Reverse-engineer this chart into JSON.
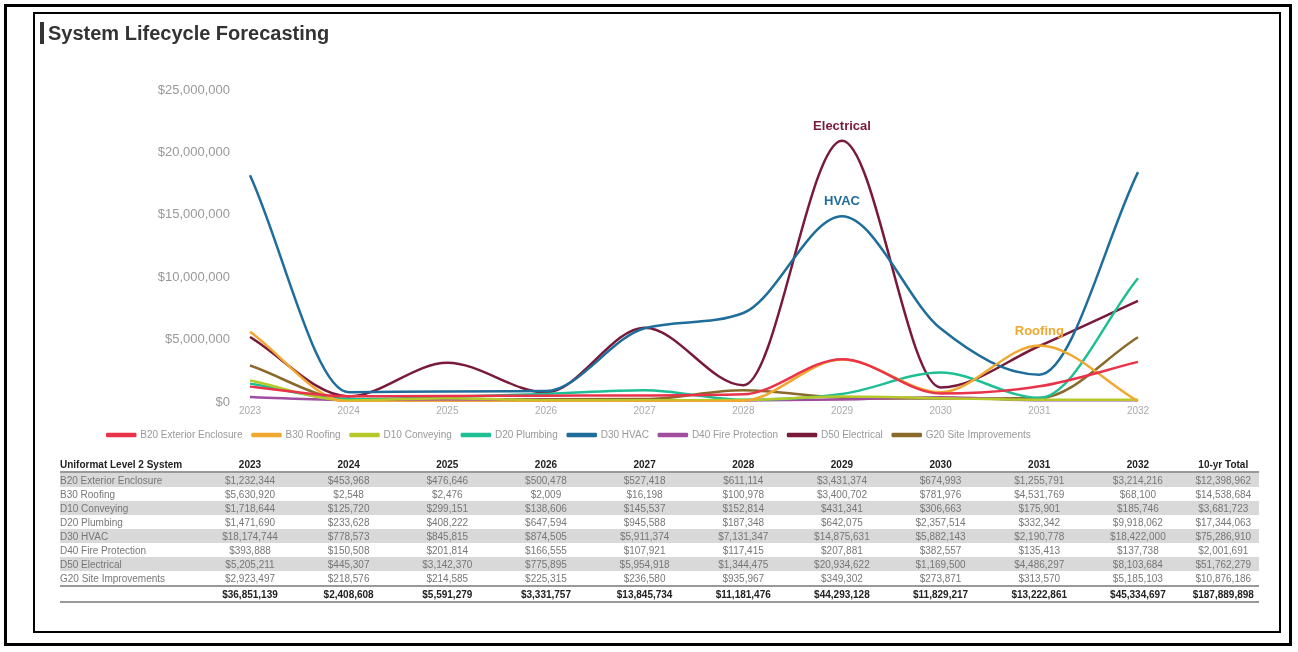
{
  "chart_data": {
    "type": "line",
    "title": "System Lifecycle Forecasting",
    "categories": [
      "2023",
      "2024",
      "2025",
      "2026",
      "2027",
      "2028",
      "2029",
      "2030",
      "2031",
      "2032"
    ],
    "ylim": [
      0,
      25000000
    ],
    "yticks": [
      {
        "value": 0,
        "label": "$0"
      },
      {
        "value": 5000000,
        "label": "$5,000,000"
      },
      {
        "value": 10000000,
        "label": "$10,000,000"
      },
      {
        "value": 15000000,
        "label": "$15,000,000"
      },
      {
        "value": 20000000,
        "label": "$20,000,000"
      },
      {
        "value": 25000000,
        "label": "$25,000,000"
      }
    ],
    "grid": false,
    "legend": "bottom",
    "marker": "none",
    "line_style": "solid",
    "series": [
      {
        "name": "B20 Exterior Enclosure",
        "color": "#e8334a",
        "values": [
          1232344,
          453968,
          476646,
          500478,
          527418,
          611114,
          3431374,
          674993,
          1255791,
          3214216
        ],
        "value_labels": [
          "$1,232,344",
          "$453,968",
          "$476,646",
          "$500,478",
          "$527,418",
          "$611,114",
          "$3,431,374",
          "$674,993",
          "$1,255,791",
          "$3,214,216"
        ]
      },
      {
        "name": "B30 Roofing",
        "color": "#f0a830",
        "values": [
          5630920,
          2548,
          2476,
          2009,
          16198,
          100978,
          3400702,
          781976,
          4531769,
          68100
        ],
        "value_labels": [
          "$5,630,920",
          "$2,548",
          "$2,476",
          "$2,009",
          "$16,198",
          "$100,978",
          "$3,400,702",
          "$781,976",
          "$4,531,769",
          "$68,100"
        ]
      },
      {
        "name": "D10 Conveying",
        "color": "#b5c92a",
        "values": [
          1718644,
          125720,
          299151,
          138606,
          145537,
          152814,
          431341,
          306663,
          175901,
          185746
        ],
        "value_labels": [
          "$1,718,644",
          "$125,720",
          "$299,151",
          "$138,606",
          "$145,537",
          "$152,814",
          "$431,341",
          "$306,663",
          "$175,901",
          "$185,746"
        ]
      },
      {
        "name": "D20 Plumbing",
        "color": "#1fbf95",
        "values": [
          1471690,
          233628,
          408222,
          647594,
          945588,
          187348,
          642075,
          2357514,
          332342,
          9918062
        ],
        "value_labels": [
          "$1,471,690",
          "$233,628",
          "$408,222",
          "$647,594",
          "$945,588",
          "$187,348",
          "$642,075",
          "$2,357,514",
          "$332,342",
          "$9,918,062"
        ]
      },
      {
        "name": "D30 HVAC",
        "color": "#1f6d9a",
        "values": [
          18174744,
          778573,
          845815,
          874505,
          5911374,
          7131347,
          14875631,
          5882143,
          2190778,
          18422000
        ],
        "value_labels": [
          "$18,174,744",
          "$778,573",
          "$845,815",
          "$874,505",
          "$5,911,374",
          "$7,131,347",
          "$14,875,631",
          "$5,882,143",
          "$2,190,778",
          "$18,422,000"
        ]
      },
      {
        "name": "D40 Fire Protection",
        "color": "#a04da0",
        "values": [
          393888,
          150508,
          201814,
          166555,
          107921,
          117415,
          207881,
          382557,
          135413,
          137738
        ],
        "value_labels": [
          "$393,888",
          "$150,508",
          "$201,814",
          "$166,555",
          "$107,921",
          "$117,415",
          "$207,881",
          "$382,557",
          "$135,413",
          "$137,738"
        ]
      },
      {
        "name": "D50 Electrical",
        "color": "#7a1a3a",
        "values": [
          5205211,
          445307,
          3142370,
          775895,
          5954918,
          1344475,
          20934622,
          1169500,
          4486297,
          8103684
        ],
        "value_labels": [
          "$5,205,211",
          "$445,307",
          "$3,142,370",
          "$775,895",
          "$5,954,918",
          "$1,344,475",
          "$20,934,622",
          "$1,169,500",
          "$4,486,297",
          "$8,103,684"
        ]
      },
      {
        "name": "G20 Site Improvements",
        "color": "#8a6a2a",
        "values": [
          2923497,
          218576,
          214585,
          225315,
          236580,
          935967,
          349302,
          273871,
          313570,
          5185103
        ],
        "value_labels": [
          "$2,923,497",
          "$218,576",
          "$214,585",
          "$225,315",
          "$236,580",
          "$935,967",
          "$349,302",
          "$273,871",
          "$313,570",
          "$5,185,103"
        ]
      }
    ],
    "totals": [
      "$36,851,139",
      "$2,408,608",
      "$5,591,279",
      "$3,331,757",
      "$13,845,734",
      "$11,181,476",
      "$44,293,128",
      "$11,829,217",
      "$13,222,861",
      "$45,334,697"
    ],
    "annotations": [
      "Uniformat Level 2 System",
      "10-yr Total",
      "$12,398,962",
      "$14,538,684",
      "$3,681,723",
      "$17,344,063",
      "$75,286,910",
      "$2,001,691",
      "$51,762,279",
      "$10,876,186",
      "$187,889,898",
      {
        "text": "Electrical",
        "x": "2029",
        "y": 20934622
      },
      {
        "text": "HVAC",
        "x": "2029",
        "y": 14875631
      },
      {
        "text": "Roofing",
        "x": "2031",
        "y": 4531769
      }
    ]
  }
}
